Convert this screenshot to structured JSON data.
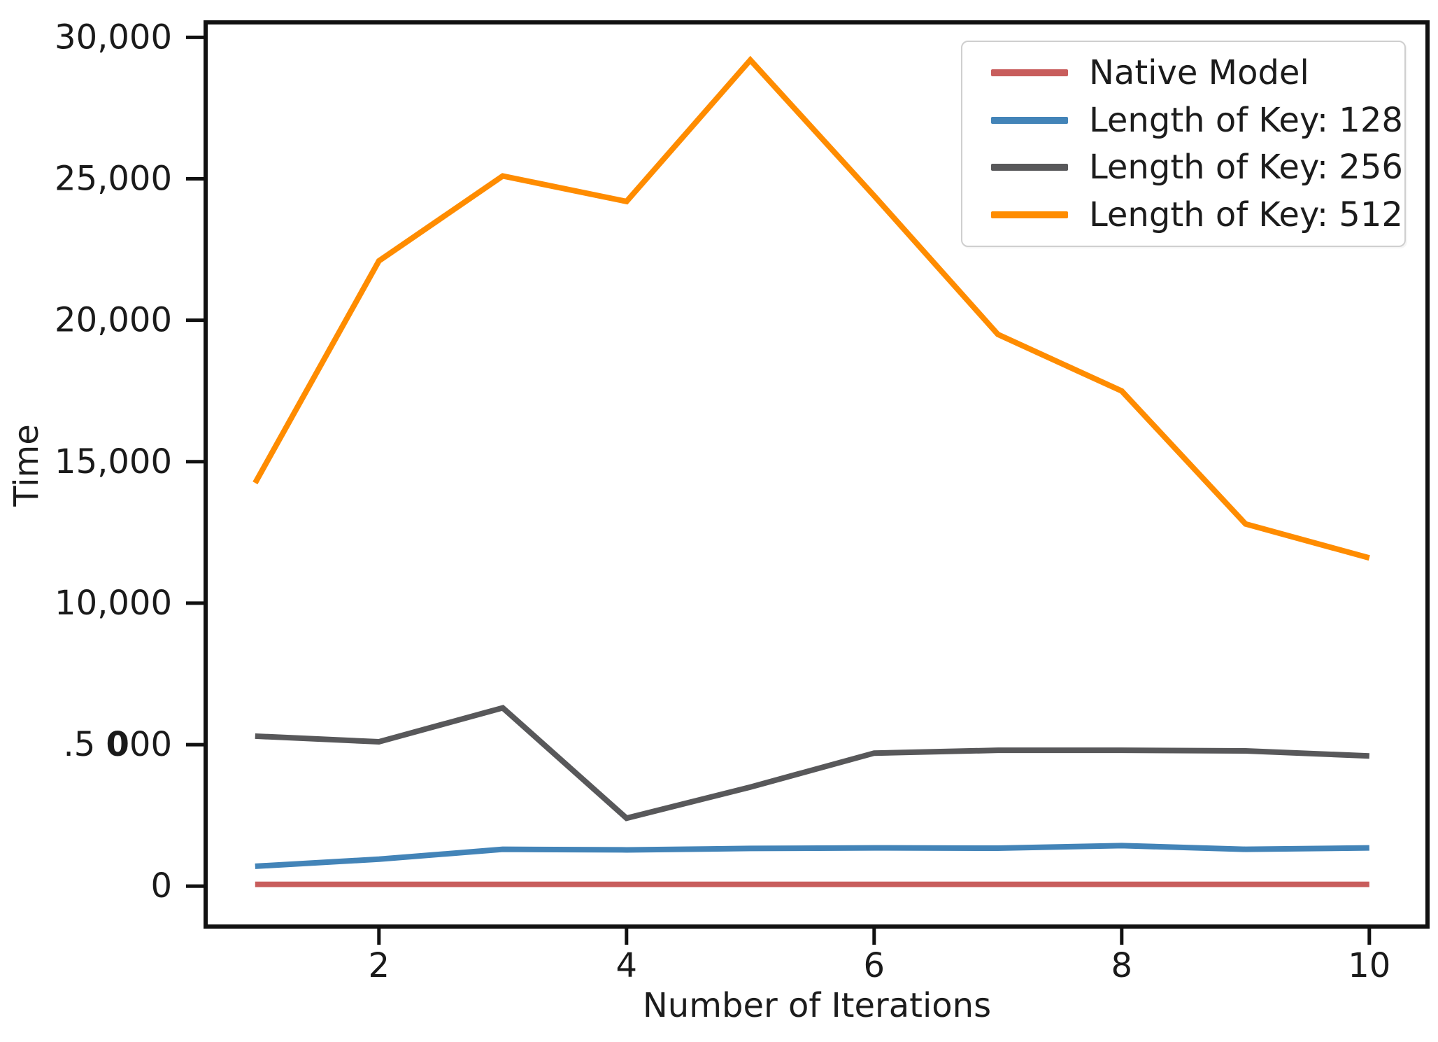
{
  "figure": {
    "background": "#ffffff",
    "text_color": "#1c1c1c"
  },
  "chart_data": {
    "type": "line",
    "title": "",
    "xlabel": "Number of Iterations",
    "ylabel": "Time",
    "grid": false,
    "legend_position": "upper right",
    "x": [
      1,
      2,
      3,
      4,
      5,
      6,
      7,
      8,
      9,
      10
    ],
    "xticks": [
      2,
      4,
      6,
      8,
      10
    ],
    "yticks": [
      {
        "value": 0,
        "label": "0"
      },
      {
        "value": 5000,
        "label": ".5 000",
        "parts": [
          {
            "t": ".5 "
          },
          {
            "t": "0",
            "bold": true
          },
          {
            "t": "00"
          }
        ]
      },
      {
        "value": 10000,
        "label": "10,000"
      },
      {
        "value": 15000,
        "label": "15,000"
      },
      {
        "value": 20000,
        "label": "20,000"
      },
      {
        "value": 25000,
        "label": "25,000"
      },
      {
        "value": 30000,
        "label": "30,000"
      }
    ],
    "xlim": [
      0.6,
      10.47
    ],
    "ylim": [
      -1430,
      30530
    ],
    "series": [
      {
        "name": "Native Model",
        "color": "#c85d5c",
        "values": [
          60,
          60,
          60,
          60,
          60,
          60,
          60,
          60,
          60,
          60
        ]
      },
      {
        "name": "Length of Key: 128",
        "color": "#4384b8",
        "values": [
          700,
          950,
          1300,
          1280,
          1330,
          1350,
          1340,
          1430,
          1300,
          1350
        ]
      },
      {
        "name": "Length of Key: 256",
        "color": "#58585a",
        "values": [
          5300,
          5100,
          6300,
          2400,
          3500,
          4700,
          4800,
          4800,
          4780,
          4600
        ]
      },
      {
        "name": "Length of Key: 512",
        "color": "#ff8c00",
        "values": [
          14250,
          22100,
          25100,
          24200,
          29200,
          24400,
          19500,
          17500,
          12800,
          11600
        ]
      }
    ],
    "axis_color": "#111111",
    "tick_label_color": "#1a1a1a"
  }
}
